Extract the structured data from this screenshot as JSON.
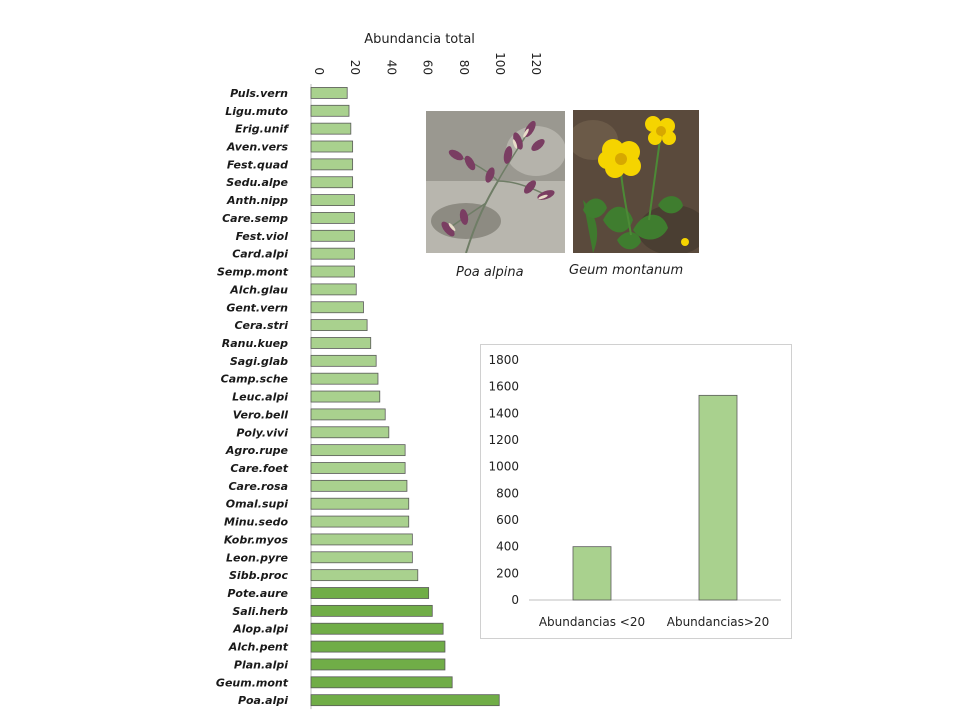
{
  "chart_data": [
    {
      "type": "bar",
      "orientation": "horizontal",
      "title": "",
      "xlabel": "Abundancia total",
      "ylabel": "",
      "xlim": [
        0,
        120
      ],
      "xticks": [
        0,
        20,
        40,
        60,
        80,
        100,
        120
      ],
      "categories": [
        "Puls.vern",
        "Ligu.muto",
        "Erig.unif",
        "Aven.vers",
        "Fest.quad",
        "Sedu.alpe",
        "Anth.nipp",
        "Care.semp",
        "Fest.viol",
        "Card.alpi",
        "Semp.mont",
        "Alch.glau",
        "Gent.vern",
        "Cera.stri",
        "Ranu.kuep",
        "Sagi.glab",
        "Camp.sche",
        "Leuc.alpi",
        "Vero.bell",
        "Poly.vivi",
        "Agro.rupe",
        "Care.foet",
        "Care.rosa",
        "Omal.supi",
        "Minu.sedo",
        "Kobr.myos",
        "Leon.pyre",
        "Sibb.proc",
        "Pote.aure",
        "Sali.herb",
        "Alop.alpi",
        "Alch.pent",
        "Plan.alpi",
        "Geum.mont",
        "Poa.alpi"
      ],
      "values": [
        20,
        21,
        22,
        23,
        23,
        23,
        24,
        24,
        24,
        24,
        24,
        25,
        29,
        31,
        33,
        36,
        37,
        38,
        41,
        43,
        52,
        52,
        53,
        54,
        54,
        56,
        56,
        59,
        65,
        67,
        73,
        74,
        74,
        78,
        104
      ],
      "color_groups": {
        "light": "#a9d18e",
        "dark": "#70ad47"
      },
      "dark_from_index": 28
    },
    {
      "type": "bar",
      "title": "",
      "xlabel": "",
      "ylabel": "",
      "categories": [
        "Abundancias <20",
        "Abundancias>20"
      ],
      "values": [
        400,
        1535
      ],
      "ylim": [
        0,
        1800
      ],
      "yticks": [
        0,
        200,
        400,
        600,
        800,
        1000,
        1200,
        1400,
        1600,
        1800
      ],
      "color": "#a9d18e"
    }
  ],
  "photos": [
    {
      "caption": "Poa alpina",
      "icon": "poa-alpina-photo"
    },
    {
      "caption": "Geum montanum",
      "icon": "geum-montanum-photo"
    }
  ]
}
